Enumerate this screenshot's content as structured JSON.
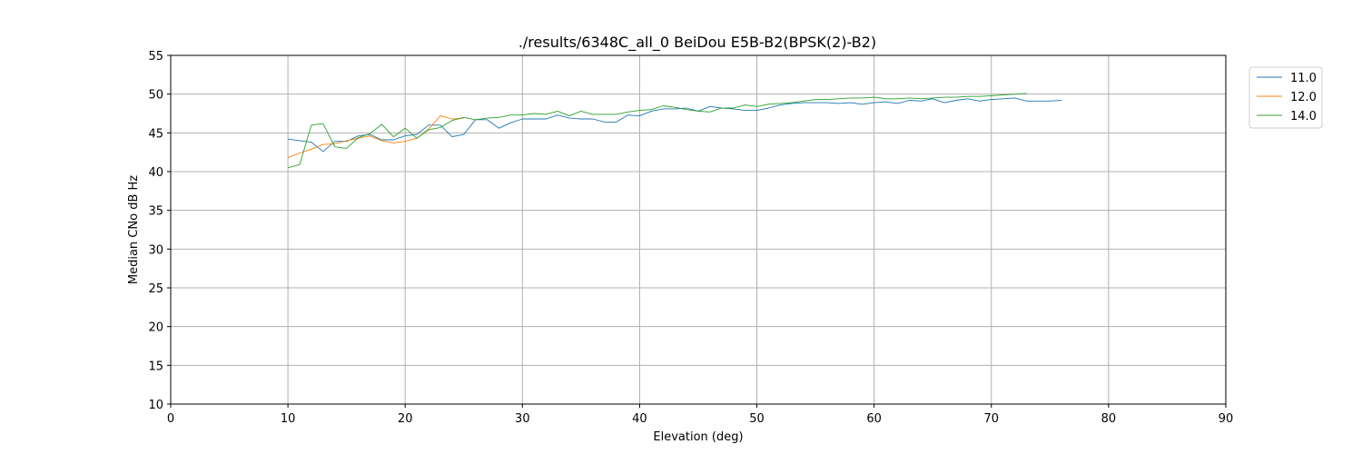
{
  "chart_data": {
    "type": "line",
    "title": "./results/6348C_all_0 BeiDou E5B-B2(BPSK(2)-B2)",
    "xlabel": "Elevation (deg)",
    "ylabel": "Median CNo dB Hz",
    "xlim": [
      0,
      90
    ],
    "ylim": [
      10,
      55
    ],
    "xticks": [
      0,
      10,
      20,
      30,
      40,
      50,
      60,
      70,
      80,
      90
    ],
    "yticks": [
      10,
      15,
      20,
      25,
      30,
      35,
      40,
      45,
      50,
      55
    ],
    "grid": true,
    "legend": {
      "position": "outside-top-right"
    },
    "series": [
      {
        "name": "11.0",
        "color": "#1f77b4",
        "x": [
          10,
          11,
          12,
          13,
          14,
          15,
          16,
          17,
          18,
          19,
          20,
          21,
          22,
          23,
          24,
          25,
          26,
          27,
          28,
          29,
          30,
          31,
          32,
          33,
          34,
          35,
          36,
          37,
          38,
          39,
          40,
          41,
          42,
          43,
          44,
          45,
          46,
          47,
          48,
          49,
          50,
          51,
          52,
          53,
          54,
          55,
          56,
          57,
          58,
          59,
          60,
          61,
          62,
          63,
          64,
          65,
          66,
          67,
          68,
          69,
          70,
          71,
          72,
          73,
          74,
          75,
          76
        ],
        "y": [
          44.2,
          44.0,
          43.8,
          42.6,
          43.9,
          43.9,
          44.6,
          44.8,
          44.1,
          44.1,
          44.6,
          44.8,
          46.0,
          46.0,
          44.5,
          44.8,
          46.7,
          46.7,
          45.6,
          46.3,
          46.8,
          46.8,
          46.8,
          47.3,
          46.9,
          46.8,
          46.8,
          46.4,
          46.4,
          47.3,
          47.2,
          47.8,
          48.1,
          48.1,
          48.2,
          47.8,
          48.4,
          48.2,
          48.1,
          47.9,
          47.9,
          48.2,
          48.6,
          48.8,
          48.9,
          48.9,
          48.9,
          48.8,
          48.9,
          48.7,
          48.9,
          49.0,
          48.8,
          49.2,
          49.1,
          49.4,
          48.9,
          49.2,
          49.4,
          49.1,
          49.3,
          49.4,
          49.5,
          49.1,
          49.1,
          49.1,
          49.2
        ]
      },
      {
        "name": "12.0",
        "color": "#ff7f0e",
        "x": [
          10,
          11,
          12,
          13,
          14,
          15,
          16,
          17,
          18,
          19,
          20,
          21,
          22,
          23,
          24,
          25
        ],
        "y": [
          41.8,
          42.4,
          42.9,
          43.5,
          43.6,
          44.0,
          44.3,
          44.6,
          44.0,
          43.7,
          43.9,
          44.3,
          45.5,
          47.2,
          46.8,
          46.9
        ]
      },
      {
        "name": "14.0",
        "color": "#2ca02c",
        "x": [
          10,
          11,
          12,
          13,
          14,
          15,
          16,
          17,
          18,
          19,
          20,
          21,
          22,
          23,
          24,
          25,
          26,
          27,
          28,
          29,
          30,
          31,
          32,
          33,
          34,
          35,
          36,
          37,
          38,
          39,
          40,
          41,
          42,
          43,
          44,
          45,
          46,
          47,
          48,
          49,
          50,
          51,
          52,
          53,
          54,
          55,
          56,
          57,
          58,
          59,
          60,
          61,
          62,
          63,
          64,
          65,
          66,
          67,
          68,
          69,
          70,
          71,
          72,
          73
        ],
        "y": [
          40.5,
          40.9,
          46.0,
          46.2,
          43.2,
          43.0,
          44.4,
          44.9,
          46.1,
          44.5,
          45.6,
          44.3,
          45.4,
          45.7,
          46.6,
          47.0,
          46.7,
          46.9,
          47.0,
          47.3,
          47.3,
          47.5,
          47.4,
          47.8,
          47.2,
          47.8,
          47.4,
          47.4,
          47.4,
          47.7,
          47.9,
          48.0,
          48.5,
          48.3,
          48.0,
          47.8,
          47.7,
          48.2,
          48.2,
          48.6,
          48.4,
          48.7,
          48.8,
          48.9,
          49.1,
          49.3,
          49.3,
          49.4,
          49.5,
          49.5,
          49.6,
          49.4,
          49.4,
          49.5,
          49.4,
          49.5,
          49.6,
          49.6,
          49.7,
          49.7,
          49.8,
          49.9,
          50.0,
          50.1
        ]
      }
    ]
  }
}
